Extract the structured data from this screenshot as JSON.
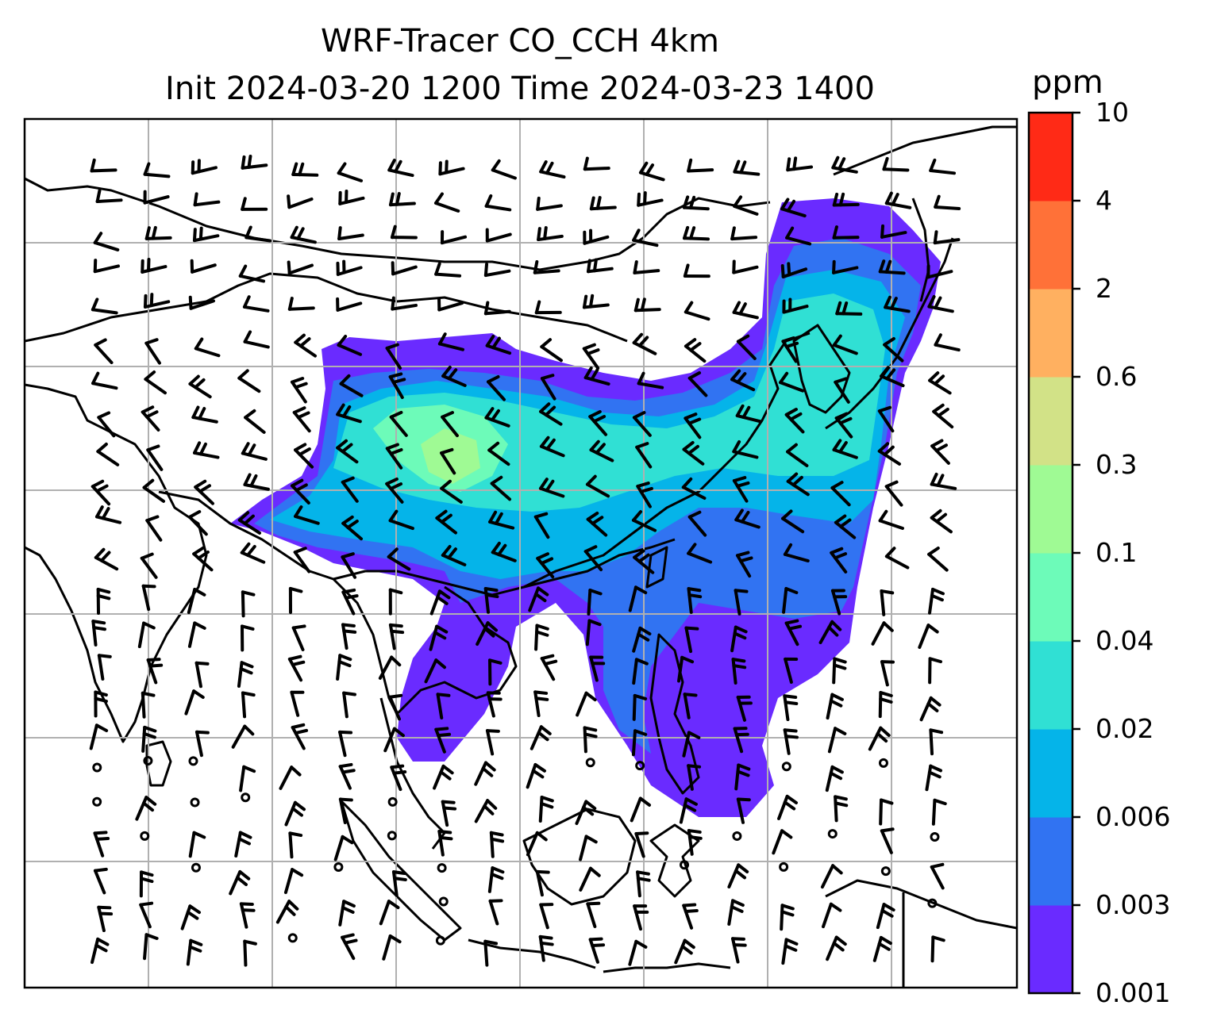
{
  "figure": {
    "title_line1": "WRF-Tracer CO_CCH 4km",
    "title_line2": "Init 2024-03-20 1200 Time 2024-03-23 1400"
  },
  "colorbar": {
    "unit": "ppm",
    "levels": [
      "0.001",
      "0.003",
      "0.006",
      "0.02",
      "0.04",
      "0.1",
      "0.3",
      "0.6",
      "2",
      "4",
      "10"
    ],
    "colors": [
      "#6a2bff",
      "#3173f2",
      "#05b4e9",
      "#30e0d4",
      "#6dfbb9",
      "#9ffa94",
      "#d2e287",
      "#ffb060",
      "#ff7138",
      "#ff2a16"
    ]
  },
  "map": {
    "gridlines": true,
    "coastlines": true,
    "field_colors": {
      "outer": "#6a2bff",
      "mid": "#3173f2",
      "cyan": "#05b4e9",
      "teal": "#30e0d4",
      "aqua": "#6dfbb9",
      "green": "#9ffa94"
    }
  }
}
